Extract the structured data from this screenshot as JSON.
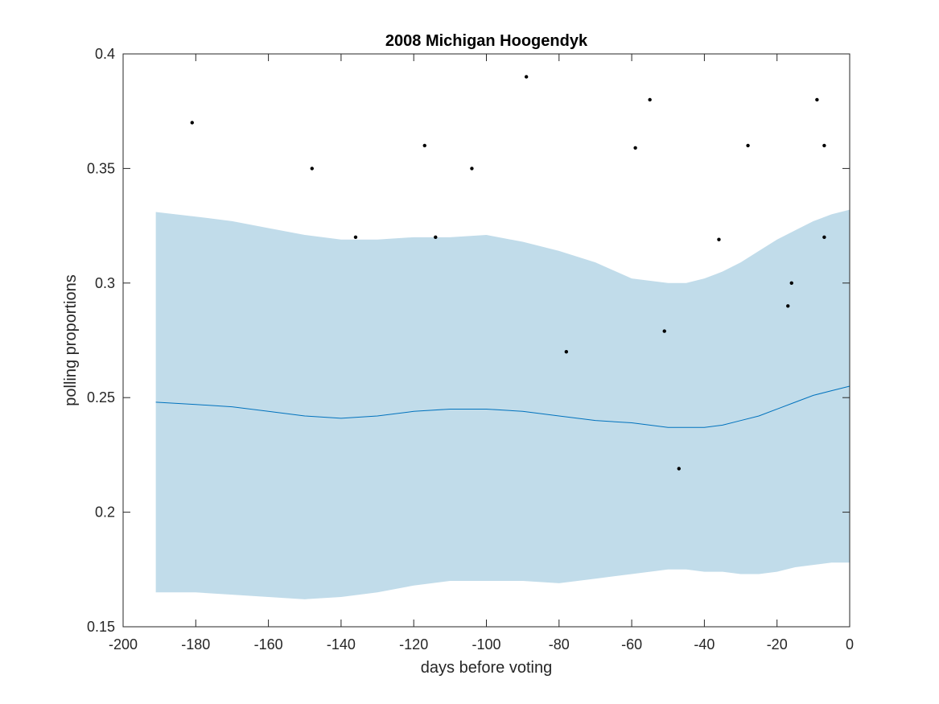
{
  "chart_data": {
    "type": "line",
    "title": "2008 Michigan Hoogendyk",
    "xlabel": "days before voting",
    "ylabel": "polling proportions",
    "xlim": [
      -200,
      0
    ],
    "ylim": [
      0.15,
      0.4
    ],
    "xticks": [
      -200,
      -180,
      -160,
      -140,
      -120,
      -100,
      -80,
      -60,
      -40,
      -20,
      0
    ],
    "yticks": [
      0.15,
      0.2,
      0.25,
      0.3,
      0.35,
      0.4
    ],
    "xtick_labels": [
      "-200",
      "-180",
      "-160",
      "-140",
      "-120",
      "-100",
      "-80",
      "-60",
      "-40",
      "-20",
      "0"
    ],
    "ytick_labels": [
      "0.15",
      "0.2",
      "0.25",
      "0.3",
      "0.35",
      "0.4"
    ],
    "grid": false,
    "colors": {
      "band": "#c1dcea",
      "line": "#0072bd",
      "points": "#000000"
    },
    "band": {
      "x": [
        -191,
        -180,
        -170,
        -160,
        -150,
        -140,
        -130,
        -120,
        -110,
        -100,
        -90,
        -80,
        -70,
        -60,
        -50,
        -45,
        -40,
        -35,
        -30,
        -25,
        -20,
        -15,
        -10,
        -5,
        0
      ],
      "upper": [
        0.331,
        0.329,
        0.327,
        0.324,
        0.321,
        0.319,
        0.319,
        0.32,
        0.32,
        0.321,
        0.318,
        0.314,
        0.309,
        0.302,
        0.3,
        0.3,
        0.302,
        0.305,
        0.309,
        0.314,
        0.319,
        0.323,
        0.327,
        0.33,
        0.332
      ],
      "lower": [
        0.165,
        0.165,
        0.164,
        0.163,
        0.162,
        0.163,
        0.165,
        0.168,
        0.17,
        0.17,
        0.17,
        0.169,
        0.171,
        0.173,
        0.175,
        0.175,
        0.174,
        0.174,
        0.173,
        0.173,
        0.174,
        0.176,
        0.177,
        0.178,
        0.178
      ]
    },
    "series": [
      {
        "x": [
          -191,
          -180,
          -170,
          -160,
          -150,
          -140,
          -130,
          -120,
          -110,
          -100,
          -90,
          -80,
          -70,
          -60,
          -50,
          -45,
          -40,
          -35,
          -30,
          -25,
          -20,
          -15,
          -10,
          -5,
          0
        ],
        "values": [
          0.248,
          0.247,
          0.246,
          0.244,
          0.242,
          0.241,
          0.242,
          0.244,
          0.245,
          0.245,
          0.244,
          0.242,
          0.24,
          0.239,
          0.237,
          0.237,
          0.237,
          0.238,
          0.24,
          0.242,
          0.245,
          0.248,
          0.251,
          0.253,
          0.255
        ]
      }
    ],
    "points": {
      "x": [
        -181,
        -148,
        -136,
        -117,
        -114,
        -104,
        -89,
        -78,
        -59,
        -55,
        -51,
        -47,
        -36,
        -28,
        -17,
        -16,
        -9,
        -7,
        -7
      ],
      "y": [
        0.37,
        0.35,
        0.32,
        0.36,
        0.32,
        0.35,
        0.39,
        0.27,
        0.359,
        0.38,
        0.279,
        0.219,
        0.319,
        0.36,
        0.29,
        0.3,
        0.38,
        0.36,
        0.32
      ]
    }
  }
}
